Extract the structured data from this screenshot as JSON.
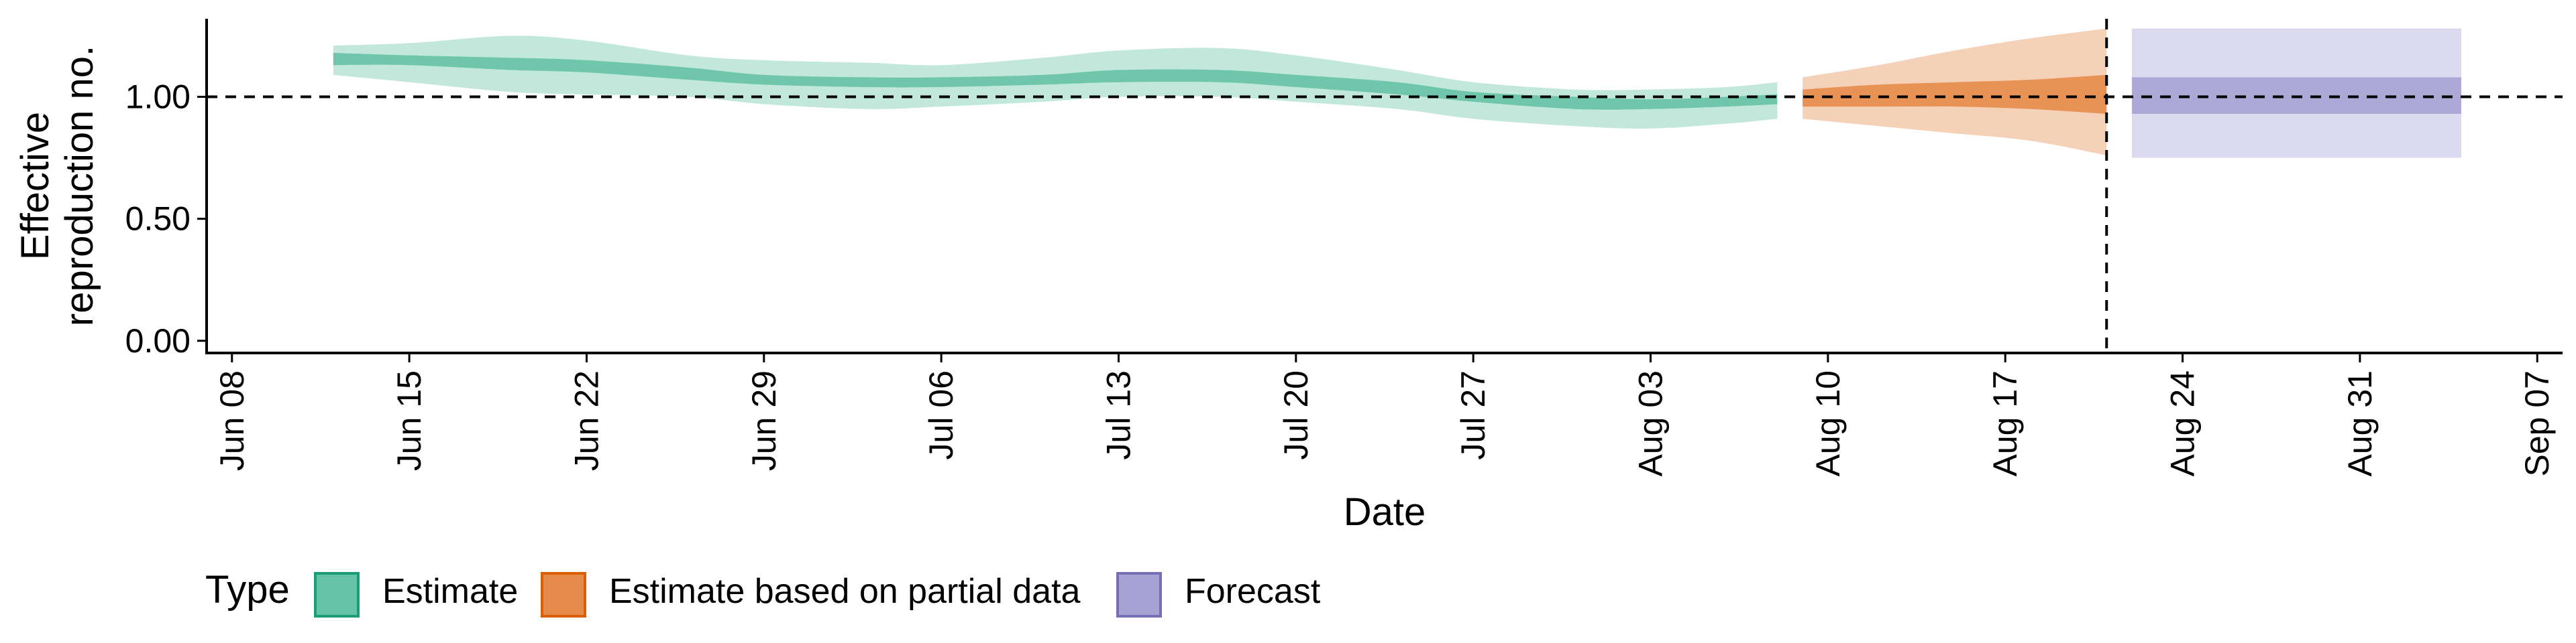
{
  "chart_data": {
    "type": "area",
    "xlabel": "Date",
    "ylabel": "Effective reproduction no.",
    "ylabel_lines": [
      "Effective",
      "reproduction no."
    ],
    "xlim": [
      "2020-06-07",
      "2020-09-08"
    ],
    "ylim": [
      -0.05,
      1.32
    ],
    "x_ticks": [
      "2020-06-08",
      "2020-06-15",
      "2020-06-22",
      "2020-06-29",
      "2020-07-06",
      "2020-07-13",
      "2020-07-20",
      "2020-07-27",
      "2020-08-03",
      "2020-08-10",
      "2020-08-17",
      "2020-08-24",
      "2020-08-31",
      "2020-09-07"
    ],
    "x_tick_labels": [
      "Jun 08",
      "Jun 15",
      "Jun 22",
      "Jun 29",
      "Jul 06",
      "Jul 13",
      "Jul 20",
      "Jul 27",
      "Aug 03",
      "Aug 10",
      "Aug 17",
      "Aug 24",
      "Aug 31",
      "Sep 07"
    ],
    "y_ticks": [
      0,
      0.5,
      1.0
    ],
    "y_tick_labels": [
      "0.00",
      "0.50",
      "1.00"
    ],
    "hline": 1.0,
    "vline": "2020-08-21",
    "grid": false,
    "legend": {
      "title": "Type",
      "position": "bottom",
      "entries": [
        "Estimate",
        "Estimate based on partial data",
        "Forecast"
      ]
    },
    "series": [
      {
        "name": "Estimate",
        "fill": "#66c2a5",
        "stroke": "#1b9e77",
        "x": [
          "2020-06-12",
          "2020-06-15",
          "2020-06-19",
          "2020-06-22",
          "2020-06-26",
          "2020-06-29",
          "2020-07-03",
          "2020-07-06",
          "2020-07-10",
          "2020-07-13",
          "2020-07-17",
          "2020-07-20",
          "2020-07-24",
          "2020-07-27",
          "2020-07-31",
          "2020-08-03",
          "2020-08-06",
          "2020-08-08"
        ],
        "median_lower": [
          1.13,
          1.13,
          1.11,
          1.1,
          1.07,
          1.05,
          1.04,
          1.04,
          1.05,
          1.06,
          1.06,
          1.04,
          1.01,
          0.98,
          0.95,
          0.95,
          0.96,
          0.97
        ],
        "median_upper": [
          1.18,
          1.17,
          1.16,
          1.15,
          1.12,
          1.09,
          1.08,
          1.08,
          1.09,
          1.11,
          1.11,
          1.09,
          1.06,
          1.02,
          1.0,
          0.99,
          1.0,
          1.01
        ],
        "lower_90": [
          1.09,
          1.06,
          1.02,
          1.01,
          1.0,
          0.97,
          0.95,
          0.96,
          0.98,
          1.0,
          1.0,
          0.98,
          0.95,
          0.91,
          0.88,
          0.87,
          0.89,
          0.91
        ],
        "upper_90": [
          1.21,
          1.22,
          1.25,
          1.23,
          1.17,
          1.15,
          1.14,
          1.13,
          1.16,
          1.19,
          1.2,
          1.17,
          1.11,
          1.06,
          1.03,
          1.03,
          1.04,
          1.06
        ]
      },
      {
        "name": "Estimate based on partial data",
        "fill": "#e78b4b",
        "stroke": "#d95f02",
        "x": [
          "2020-08-09",
          "2020-08-12",
          "2020-08-15",
          "2020-08-18",
          "2020-08-21"
        ],
        "median_lower": [
          0.96,
          0.96,
          0.96,
          0.95,
          0.93
        ],
        "median_upper": [
          1.03,
          1.05,
          1.06,
          1.07,
          1.09
        ],
        "lower_90": [
          0.91,
          0.88,
          0.85,
          0.82,
          0.76
        ],
        "upper_90": [
          1.08,
          1.13,
          1.19,
          1.24,
          1.28
        ]
      },
      {
        "name": "Forecast",
        "fill": "#a6a3d4",
        "stroke": "#7570b3",
        "x": [
          "2020-08-22",
          "2020-09-04"
        ],
        "median_lower": [
          0.93,
          0.93
        ],
        "median_upper": [
          1.08,
          1.08
        ],
        "lower_90": [
          0.75,
          0.75
        ],
        "upper_90": [
          1.28,
          1.28
        ]
      }
    ]
  }
}
